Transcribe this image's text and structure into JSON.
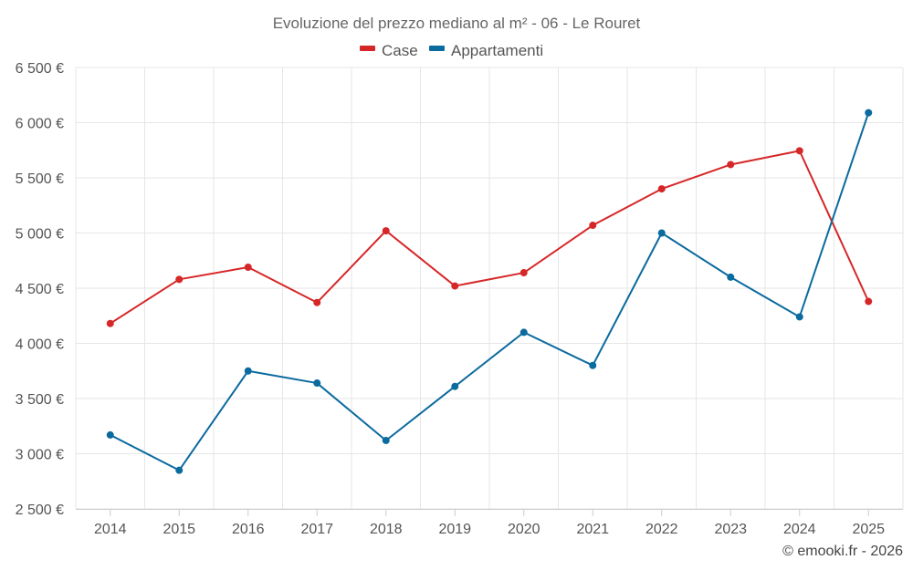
{
  "chart_data": {
    "type": "line",
    "title": "Evoluzione del prezzo mediano al m² - 06 - Le Rouret",
    "categories": [
      "2014",
      "2015",
      "2016",
      "2017",
      "2018",
      "2019",
      "2020",
      "2021",
      "2022",
      "2023",
      "2024",
      "2025"
    ],
    "series": [
      {
        "name": "Case",
        "color": "#d62728",
        "values": [
          4180,
          4580,
          4690,
          4370,
          5020,
          4520,
          4640,
          5070,
          5400,
          5620,
          5745,
          4380
        ]
      },
      {
        "name": "Appartamenti",
        "color": "#0b6a9e",
        "values": [
          3170,
          2850,
          3750,
          3640,
          3120,
          3610,
          4100,
          3800,
          5000,
          4600,
          4240,
          6090
        ]
      }
    ],
    "ylim": [
      2500,
      6500
    ],
    "yticks": [
      2500,
      3000,
      3500,
      4000,
      4500,
      5000,
      5500,
      6000,
      6500
    ],
    "ytick_labels": [
      "2 500 €",
      "3 000 €",
      "3 500 €",
      "4 000 €",
      "4 500 €",
      "5 000 €",
      "5 500 €",
      "6 000 €",
      "6 500 €"
    ],
    "xlabel": "",
    "ylabel": "",
    "grid": true,
    "legend_position": "top-center"
  },
  "credit": "© emooki.fr - 2026"
}
